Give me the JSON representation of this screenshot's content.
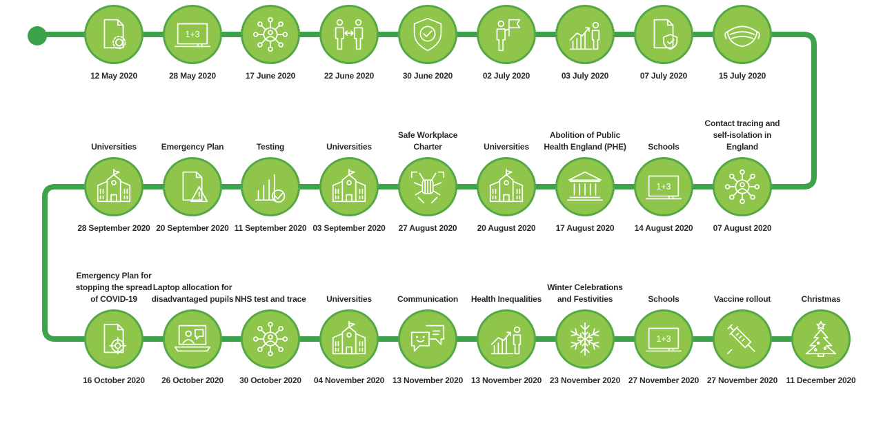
{
  "colors": {
    "track": "#3da34a",
    "node_fill": "#8fc54a",
    "node_ring": "#55a846",
    "icon_stroke": "#ffffff",
    "text": "#2b2b2b"
  },
  "rows": [
    [
      {
        "date": "12 May 2020",
        "title": "",
        "icon": "document-gear-icon"
      },
      {
        "date": "28 May 2020",
        "title": "",
        "icon": "blackboard-icon"
      },
      {
        "date": "17 June 2020",
        "title": "",
        "icon": "network-person-icon"
      },
      {
        "date": "22 June 2020",
        "title": "",
        "icon": "social-distancing-icon"
      },
      {
        "date": "30 June 2020",
        "title": "",
        "icon": "shield-check-icon"
      },
      {
        "date": "02 July 2020",
        "title": "",
        "icon": "person-flag-icon"
      },
      {
        "date": "03 July 2020",
        "title": "",
        "icon": "growth-person-icon"
      },
      {
        "date": "07 July 2020",
        "title": "",
        "icon": "document-shield-icon"
      },
      {
        "date": "15 July 2020",
        "title": "",
        "icon": "face-mask-icon"
      }
    ],
    [
      {
        "date": "07 August 2020",
        "title": "Contact tracing and self-isolation in England",
        "icon": "network-person-icon"
      },
      {
        "date": "14 August 2020",
        "title": "Schools",
        "icon": "blackboard-icon"
      },
      {
        "date": "17 August 2020",
        "title": "Abolition of Public Health England (PHE)",
        "icon": "government-building-icon"
      },
      {
        "date": "20 August 2020",
        "title": "Universities",
        "icon": "university-icon"
      },
      {
        "date": "27 August 2020",
        "title": "Safe Workplace Charter",
        "icon": "hands-together-icon"
      },
      {
        "date": "03 September 2020",
        "title": "Universities",
        "icon": "university-icon"
      },
      {
        "date": "11 September 2020",
        "title": "Testing",
        "icon": "bar-chart-check-icon"
      },
      {
        "date": "20 September 2020",
        "title": "Emergency Plan",
        "icon": "document-warning-icon"
      },
      {
        "date": "28 September 2020",
        "title": "Universities",
        "icon": "university-icon"
      }
    ],
    [
      {
        "date": "16 October 2020",
        "title": "Emergency Plan for stopping the spread of COVID-19",
        "icon": "document-target-icon"
      },
      {
        "date": "26 October 2020",
        "title": "Laptop allocation for disadvantaged pupils",
        "icon": "laptop-person-icon"
      },
      {
        "date": "30 October 2020",
        "title": "NHS test and trace",
        "icon": "network-person-icon"
      },
      {
        "date": "04 November 2020",
        "title": "Universities",
        "icon": "university-icon"
      },
      {
        "date": "13 November 2020",
        "title": "Communication",
        "icon": "chat-bubbles-icon"
      },
      {
        "date": "13 November 2020",
        "title": "Health Inequalities",
        "icon": "growth-person-icon"
      },
      {
        "date": "23 November 2020",
        "title": "Winter Celebrations and Festivities",
        "icon": "snowflake-icon"
      },
      {
        "date": "27 November 2020",
        "title": "Schools",
        "icon": "blackboard-icon"
      },
      {
        "date": "27 November 2020",
        "title": "Vaccine rollout",
        "icon": "syringe-icon"
      },
      {
        "date": "11 December 2020",
        "title": "Christmas",
        "icon": "christmas-tree-icon"
      }
    ]
  ]
}
